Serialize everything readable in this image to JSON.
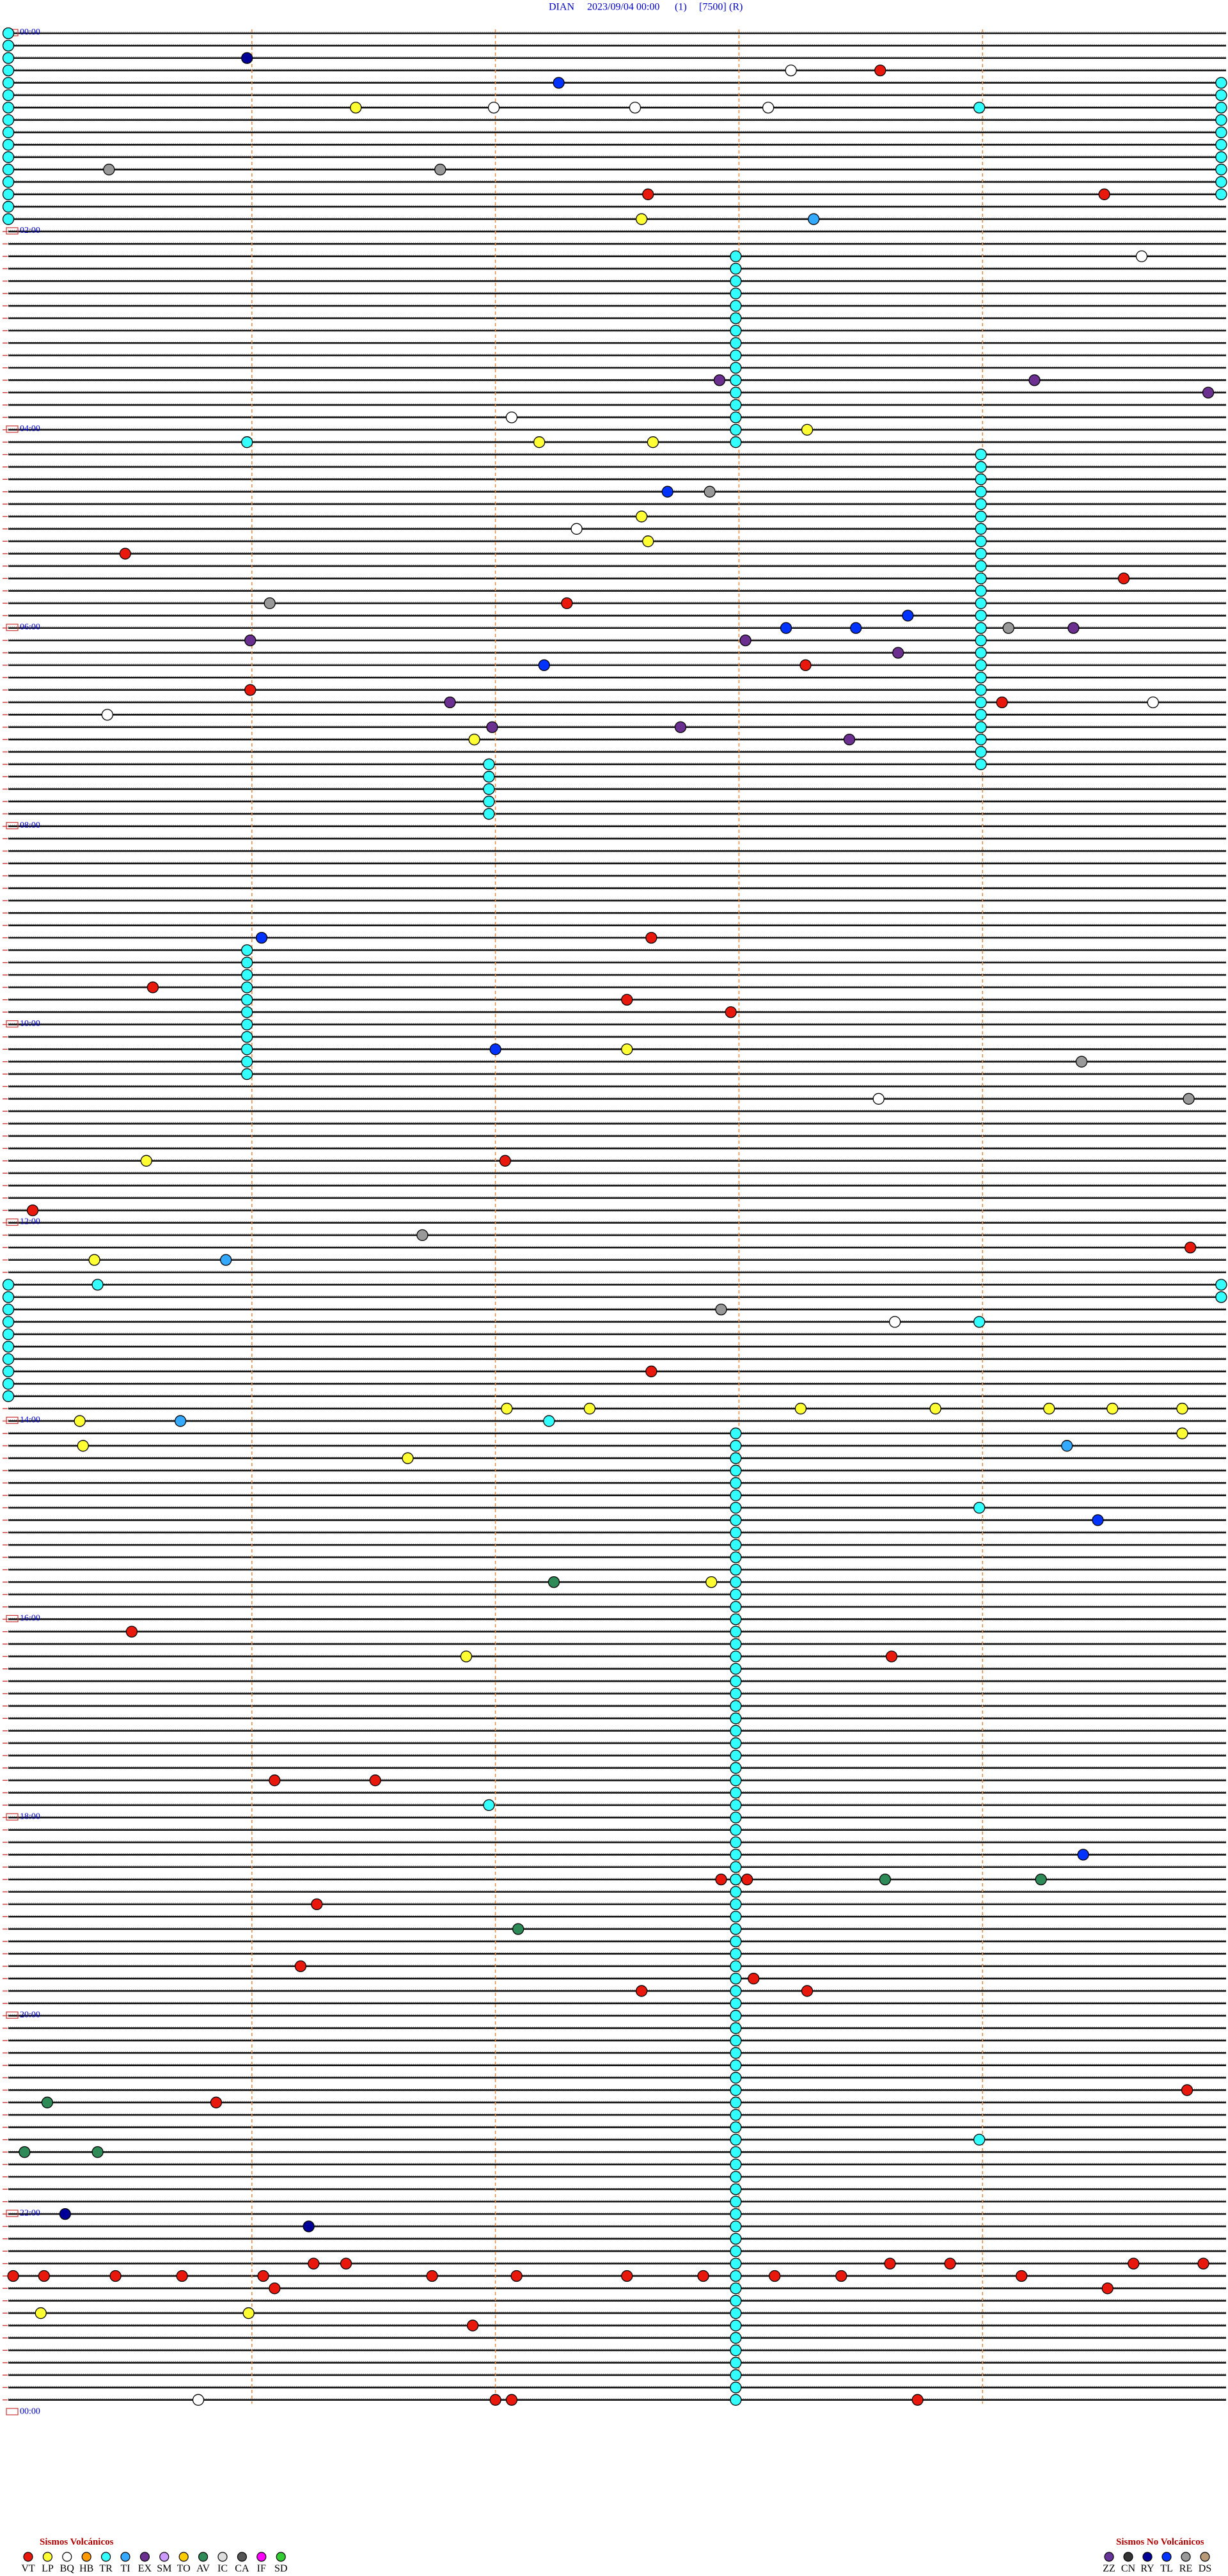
{
  "header": {
    "station": "DIAN",
    "datetime": "2023/09/04 00:00",
    "channel": "(1)",
    "scale": "[7500]",
    "mode": "(R)"
  },
  "hours": [
    "00:00",
    "02:00",
    "04:00",
    "06:00",
    "08:00",
    "10:00",
    "12:00",
    "14:00",
    "16:00",
    "18:00",
    "20:00",
    "22:00",
    "00:00"
  ],
  "legend": {
    "volcanic": {
      "title": "Sismos Volcánicos",
      "items": [
        {
          "code": "VT",
          "color": "#e8180c"
        },
        {
          "code": "LP",
          "color": "#ffff33"
        },
        {
          "code": "BQ",
          "color": "#ffffff"
        },
        {
          "code": "HB",
          "color": "#ff9900"
        },
        {
          "code": "TR",
          "color": "#33ffff"
        },
        {
          "code": "TI",
          "color": "#33aaff"
        },
        {
          "code": "EX",
          "color": "#6b2f8f"
        },
        {
          "code": "SM",
          "color": "#cc99ff"
        },
        {
          "code": "TO",
          "color": "#ffcc00"
        },
        {
          "code": "AV",
          "color": "#2e8b57"
        },
        {
          "code": "IC",
          "color": "#dddddd"
        },
        {
          "code": "CA",
          "color": "#555555"
        },
        {
          "code": "IF",
          "color": "#ff00ff"
        },
        {
          "code": "SD",
          "color": "#33cc33"
        }
      ]
    },
    "nonvolcanic": {
      "title": "Sismos No Volcánicos",
      "items": [
        {
          "code": "ZZ",
          "color": "#663399"
        },
        {
          "code": "CN",
          "color": "#333333"
        },
        {
          "code": "RY",
          "color": "#000099"
        },
        {
          "code": "TL",
          "color": "#0033ff"
        },
        {
          "code": "RE",
          "color": "#999999"
        },
        {
          "code": "DS",
          "color": "#b89a78"
        }
      ]
    }
  },
  "runs": [
    [
      0,
      15,
      0,
      "TR"
    ],
    [
      4,
      13,
      7.47,
      "TR"
    ],
    [
      18,
      33,
      4.48,
      "TR"
    ],
    [
      34,
      59,
      5.99,
      "TR"
    ],
    [
      59,
      63,
      2.96,
      "TR"
    ],
    [
      74,
      84,
      1.47,
      "TR"
    ],
    [
      101,
      110,
      0,
      "TR"
    ],
    [
      113,
      191,
      4.48,
      "TR"
    ]
  ],
  "events": [
    [
      2,
      1.47,
      "RY"
    ],
    [
      3,
      5.37,
      "VT"
    ],
    [
      4,
      3.39,
      "TL"
    ],
    [
      3,
      4.82,
      "BQ"
    ],
    [
      6,
      2.14,
      "LP"
    ],
    [
      6,
      2.99,
      "BQ"
    ],
    [
      6,
      3.86,
      "BQ"
    ],
    [
      6,
      4.68,
      "BQ"
    ],
    [
      6,
      5.98,
      "TR"
    ],
    [
      11,
      0.62,
      "RE"
    ],
    [
      11,
      2.66,
      "RE"
    ],
    [
      13,
      3.94,
      "VT"
    ],
    [
      13,
      6.75,
      "VT"
    ],
    [
      15,
      3.9,
      "LP"
    ],
    [
      15,
      4.96,
      "TI"
    ],
    [
      18,
      6.98,
      "BQ"
    ],
    [
      33,
      3.27,
      "LP"
    ],
    [
      33,
      3.97,
      "LP"
    ],
    [
      32,
      4.92,
      "LP"
    ],
    [
      31,
      3.1,
      "BQ"
    ],
    [
      28,
      4.38,
      "EX"
    ],
    [
      28,
      6.32,
      "EX"
    ],
    [
      29,
      7.39,
      "EX"
    ],
    [
      33,
      1.47,
      "TR"
    ],
    [
      37,
      4.06,
      "TL"
    ],
    [
      37,
      4.32,
      "RE"
    ],
    [
      39,
      3.9,
      "LP"
    ],
    [
      40,
      3.5,
      "BQ"
    ],
    [
      41,
      3.94,
      "LP"
    ],
    [
      42,
      0.72,
      "VT"
    ],
    [
      44,
      6.87,
      "VT"
    ],
    [
      46,
      3.44,
      "VT"
    ],
    [
      46,
      1.61,
      "RE"
    ],
    [
      48,
      4.79,
      "TL"
    ],
    [
      48,
      5.22,
      "TL"
    ],
    [
      47,
      5.54,
      "TL"
    ],
    [
      48,
      6.16,
      "RE"
    ],
    [
      48,
      6.56,
      "EX"
    ],
    [
      49,
      1.49,
      "EX"
    ],
    [
      49,
      4.54,
      "EX"
    ],
    [
      50,
      5.48,
      "EX"
    ],
    [
      51,
      3.3,
      "TL"
    ],
    [
      51,
      4.91,
      "VT"
    ],
    [
      53,
      1.49,
      "VT"
    ],
    [
      54,
      6.12,
      "VT"
    ],
    [
      54,
      2.72,
      "EX"
    ],
    [
      55,
      0.61,
      "BQ"
    ],
    [
      56,
      4.14,
      "EX"
    ],
    [
      54,
      7.05,
      "BQ"
    ],
    [
      56,
      2.98,
      "EX"
    ],
    [
      57,
      2.87,
      "LP"
    ],
    [
      57,
      5.18,
      "EX"
    ],
    [
      73,
      1.56,
      "TL"
    ],
    [
      73,
      3.96,
      "VT"
    ],
    [
      77,
      0.89,
      "VT"
    ],
    [
      78,
      3.81,
      "VT"
    ],
    [
      79,
      4.45,
      "VT"
    ],
    [
      82,
      3.0,
      "TL"
    ],
    [
      82,
      3.81,
      "LP"
    ],
    [
      83,
      6.61,
      "RE"
    ],
    [
      86,
      5.36,
      "BQ"
    ],
    [
      86,
      7.27,
      "RE"
    ],
    [
      91,
      0.85,
      "LP"
    ],
    [
      91,
      3.06,
      "VT"
    ],
    [
      95,
      0.15,
      "VT"
    ],
    [
      97,
      2.55,
      "RE"
    ],
    [
      98,
      7.28,
      "VT"
    ],
    [
      99,
      0.53,
      "LP"
    ],
    [
      99,
      1.34,
      "TI"
    ],
    [
      101,
      0.55,
      "TR"
    ],
    [
      103,
      4.39,
      "RE"
    ],
    [
      104,
      5.46,
      "BQ"
    ],
    [
      104,
      5.98,
      "TR"
    ],
    [
      101,
      7.47,
      "TR"
    ],
    [
      102,
      7.47,
      "TR"
    ],
    [
      108,
      3.96,
      "VT"
    ],
    [
      111,
      3.58,
      "LP"
    ],
    [
      111,
      3.07,
      "LP"
    ],
    [
      112,
      0.44,
      "LP"
    ],
    [
      112,
      1.06,
      "TI"
    ],
    [
      111,
      5.71,
      "LP"
    ],
    [
      111,
      6.41,
      "LP"
    ],
    [
      111,
      6.8,
      "LP"
    ],
    [
      111,
      7.23,
      "LP"
    ],
    [
      111,
      4.88,
      "LP"
    ],
    [
      112,
      3.33,
      "TR"
    ],
    [
      114,
      0.46,
      "LP"
    ],
    [
      115,
      2.46,
      "LP"
    ],
    [
      114,
      6.52,
      "TI"
    ],
    [
      113,
      7.23,
      "LP"
    ],
    [
      120,
      6.71,
      "TL"
    ],
    [
      119,
      5.98,
      "TR"
    ],
    [
      125,
      3.36,
      "AV"
    ],
    [
      125,
      4.33,
      "LP"
    ],
    [
      129,
      0.76,
      "VT"
    ],
    [
      131,
      5.44,
      "VT"
    ],
    [
      131,
      2.82,
      "LP"
    ],
    [
      141,
      1.64,
      "VT"
    ],
    [
      141,
      2.26,
      "VT"
    ],
    [
      143,
      2.96,
      "TR"
    ],
    [
      147,
      6.62,
      "TL"
    ],
    [
      149,
      4.39,
      "VT"
    ],
    [
      149,
      4.55,
      "VT"
    ],
    [
      149,
      5.4,
      "AV"
    ],
    [
      149,
      6.36,
      "AV"
    ],
    [
      151,
      1.9,
      "VT"
    ],
    [
      153,
      3.14,
      "AV"
    ],
    [
      156,
      1.8,
      "VT"
    ],
    [
      157,
      4.59,
      "VT"
    ],
    [
      158,
      3.9,
      "VT"
    ],
    [
      158,
      4.92,
      "VT"
    ],
    [
      167,
      1.28,
      "VT"
    ],
    [
      167,
      0.24,
      "AV"
    ],
    [
      166,
      7.26,
      "VT"
    ],
    [
      170,
      5.98,
      "TR"
    ],
    [
      171,
      0.1,
      "AV"
    ],
    [
      171,
      0.55,
      "AV"
    ],
    [
      176,
      0.35,
      "RY"
    ],
    [
      177,
      1.85,
      "RY"
    ],
    [
      181,
      0.03,
      "VT"
    ],
    [
      181,
      0.22,
      "VT"
    ],
    [
      181,
      0.66,
      "VT"
    ],
    [
      181,
      1.07,
      "VT"
    ],
    [
      181,
      1.57,
      "VT"
    ],
    [
      180,
      1.88,
      "VT"
    ],
    [
      180,
      2.08,
      "VT"
    ],
    [
      181,
      2.61,
      "VT"
    ],
    [
      181,
      3.13,
      "VT"
    ],
    [
      181,
      3.81,
      "VT"
    ],
    [
      181,
      4.28,
      "VT"
    ],
    [
      181,
      4.72,
      "VT"
    ],
    [
      181,
      5.13,
      "VT"
    ],
    [
      180,
      5.43,
      "VT"
    ],
    [
      180,
      5.8,
      "VT"
    ],
    [
      181,
      6.24,
      "VT"
    ],
    [
      180,
      6.93,
      "VT"
    ],
    [
      180,
      7.36,
      "VT"
    ],
    [
      182,
      1.64,
      "VT"
    ],
    [
      182,
      6.77,
      "VT"
    ],
    [
      184,
      1.48,
      "LP"
    ],
    [
      184,
      0.2,
      "LP"
    ],
    [
      185,
      2.86,
      "VT"
    ],
    [
      191,
      5.6,
      "VT"
    ],
    [
      191,
      3.0,
      "VT"
    ],
    [
      191,
      3.1,
      "VT"
    ],
    [
      191,
      1.17,
      "BQ"
    ]
  ]
}
